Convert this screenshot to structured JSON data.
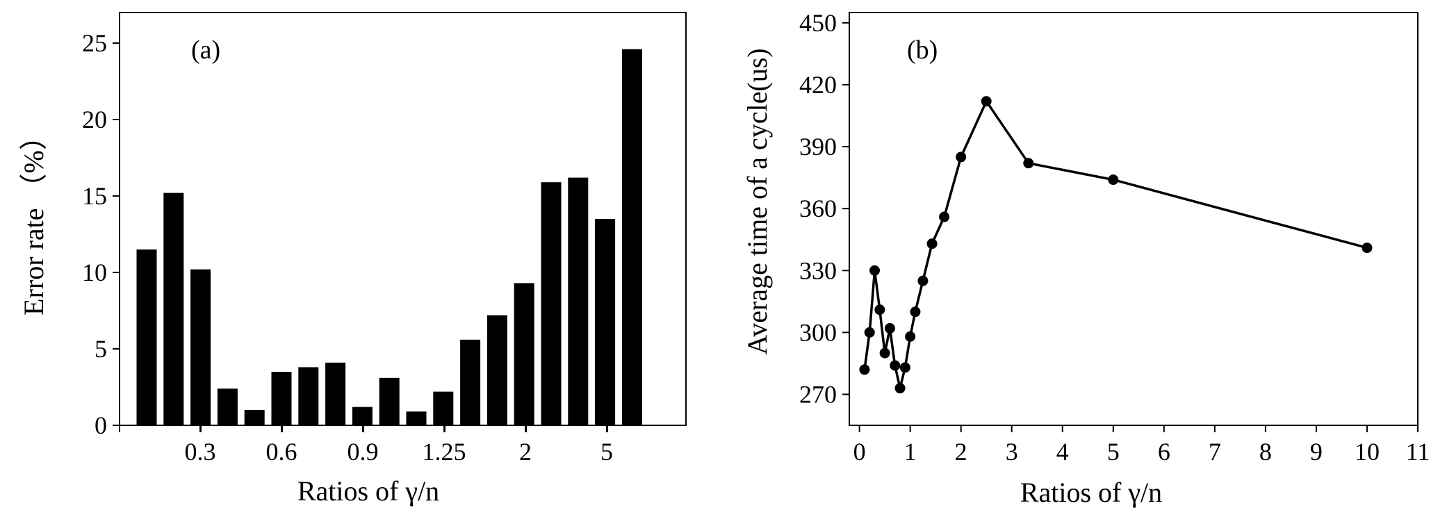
{
  "chart_data": [
    {
      "type": "bar",
      "panel_label": "(a)",
      "xlabel": "Ratios of γ/n",
      "ylabel": "Error rate （%）",
      "ylim": [
        0,
        27
      ],
      "yticks": [
        0,
        5,
        10,
        15,
        20,
        25
      ],
      "tick_labels": [
        "0.3",
        "0.6",
        "0.9",
        "1.25",
        "2",
        "5"
      ],
      "values": [
        11.5,
        15.2,
        10.2,
        2.4,
        1.0,
        3.5,
        3.8,
        4.1,
        1.2,
        3.1,
        0.9,
        2.2,
        5.6,
        7.2,
        9.3,
        15.9,
        16.2,
        13.5,
        24.6
      ],
      "grid": false,
      "colors": {
        "bar": "#000000"
      }
    },
    {
      "type": "line",
      "panel_label": "(b)",
      "xlabel": "Ratios of γ/n",
      "ylabel": "Average time of a cycle(us)",
      "xlim": [
        -0.2,
        11
      ],
      "ylim": [
        255,
        455
      ],
      "xticks": [
        0,
        1,
        2,
        3,
        4,
        5,
        6,
        7,
        8,
        9,
        10,
        11
      ],
      "yticks": [
        270,
        300,
        330,
        360,
        390,
        420,
        450
      ],
      "x": [
        0.1,
        0.2,
        0.3,
        0.4,
        0.5,
        0.6,
        0.7,
        0.8,
        0.9,
        1.0,
        1.1,
        1.25,
        1.43,
        1.67,
        2.0,
        2.5,
        3.33,
        5.0,
        10.0
      ],
      "y": [
        282,
        300,
        330,
        311,
        290,
        302,
        284,
        273,
        283,
        298,
        310,
        325,
        343,
        356,
        385,
        412,
        382,
        374,
        341
      ],
      "grid": false,
      "markers": true,
      "colors": {
        "line": "#000000",
        "marker": "#000000"
      }
    }
  ]
}
